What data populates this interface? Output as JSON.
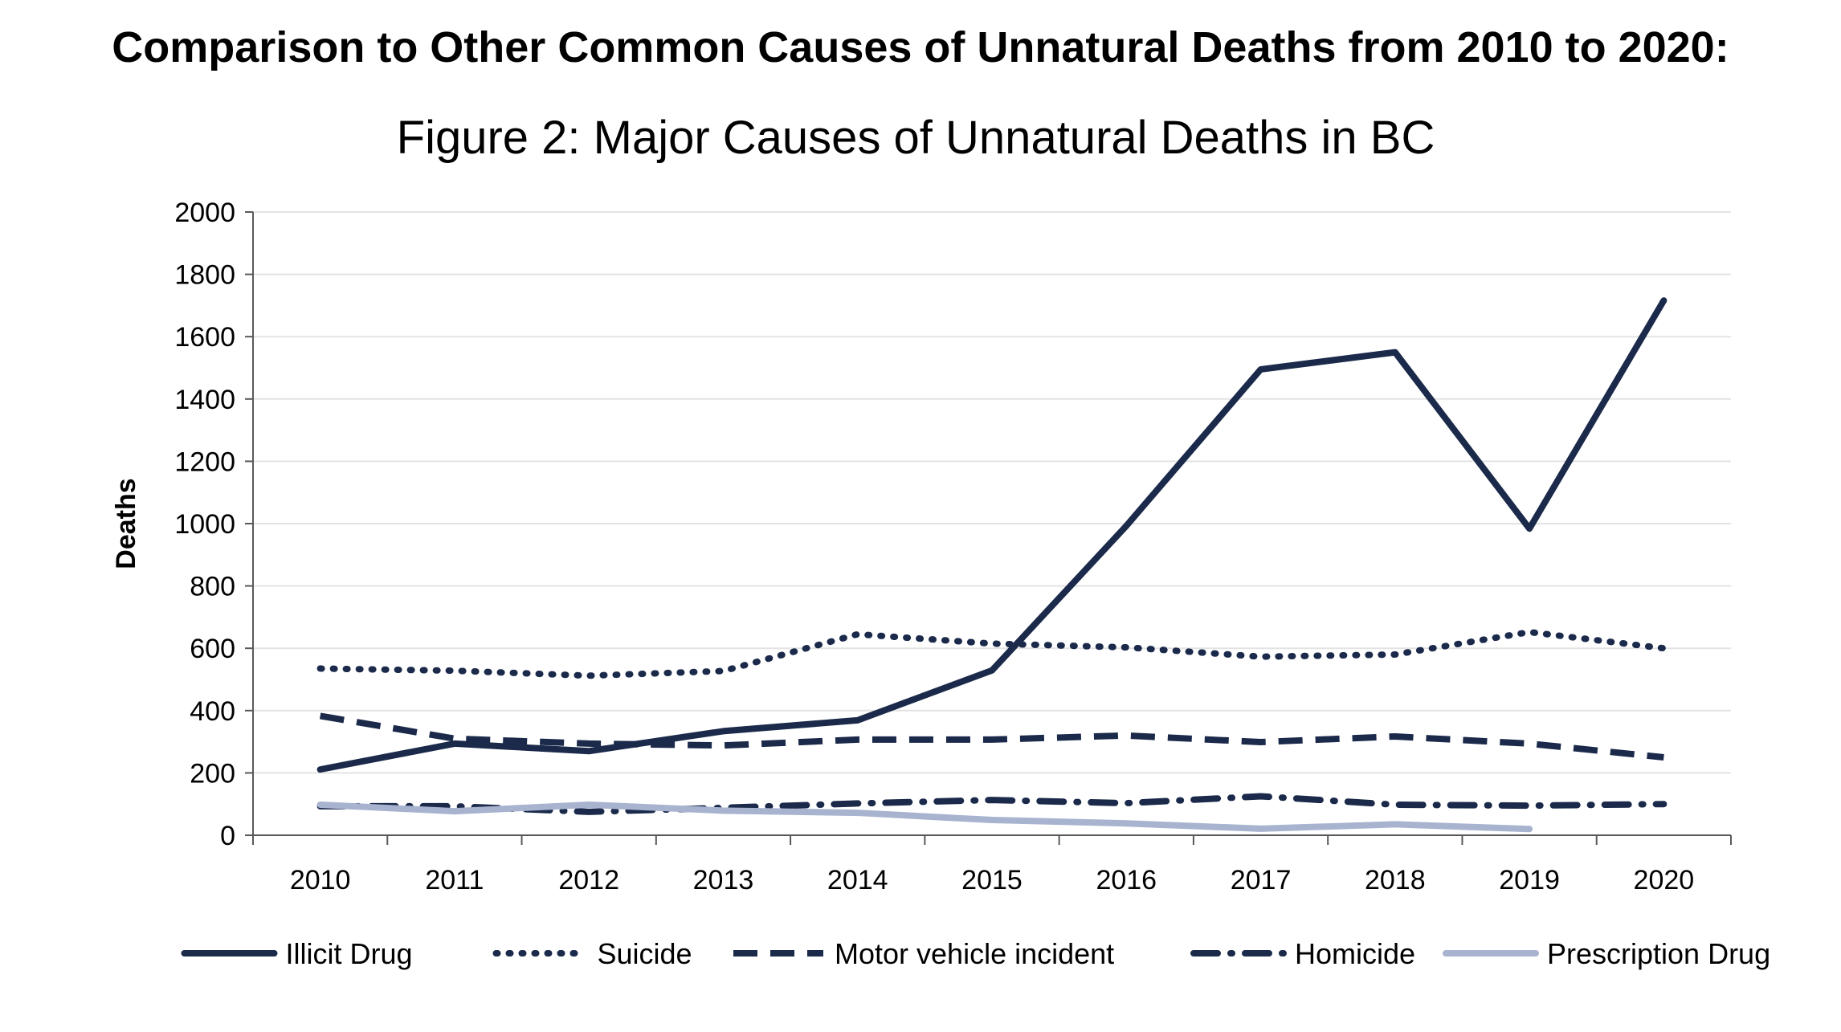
{
  "heading": "Comparison to Other Common Causes of Unnatural Deaths from 2010 to 2020:",
  "chart_data": {
    "type": "line",
    "title": "Figure 2: Major Causes of Unnatural Deaths in BC",
    "xlabel": "",
    "ylabel": "Deaths",
    "ylim": [
      0,
      2000
    ],
    "yticks": [
      0,
      200,
      400,
      600,
      800,
      1000,
      1200,
      1400,
      1600,
      1800,
      2000
    ],
    "grid": "horizontal",
    "legend_position": "bottom",
    "categories": [
      "2010",
      "2011",
      "2012",
      "2013",
      "2014",
      "2015",
      "2016",
      "2017",
      "2018",
      "2019",
      "2020"
    ],
    "series": [
      {
        "name": "Illicit Drug",
        "color": "#1b2a4a",
        "style": "solid",
        "values": [
          211,
          294,
          270,
          334,
          369,
          529,
          993,
          1495,
          1550,
          984,
          1716
        ]
      },
      {
        "name": "Suicide",
        "color": "#1b2a4a",
        "style": "dotted",
        "values": [
          535,
          528,
          512,
          527,
          645,
          615,
          603,
          573,
          580,
          652,
          600
        ]
      },
      {
        "name": "Motor vehicle incident",
        "color": "#1b2a4a",
        "style": "dashed",
        "values": [
          383,
          310,
          294,
          288,
          307,
          307,
          320,
          299,
          317,
          294,
          250
        ]
      },
      {
        "name": "Homicide",
        "color": "#1b2a4a",
        "style": "dashdot",
        "values": [
          93,
          93,
          75,
          88,
          102,
          113,
          103,
          125,
          98,
          95,
          100
        ]
      },
      {
        "name": "Prescription Drug",
        "color": "#a8b3cf",
        "style": "solid",
        "values": [
          98,
          77,
          98,
          79,
          72,
          49,
          38,
          21,
          35,
          20,
          null
        ]
      }
    ]
  }
}
